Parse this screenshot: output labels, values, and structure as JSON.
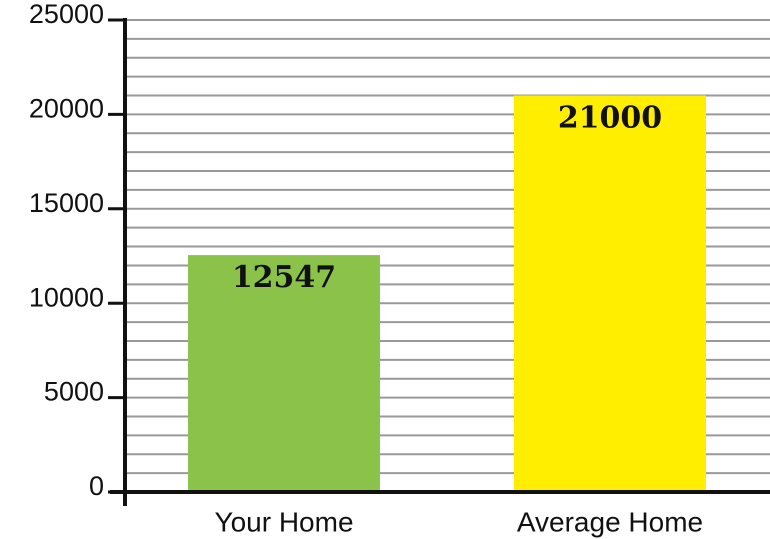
{
  "chart_data": {
    "type": "bar",
    "categories": [
      "Your Home",
      "Average Home"
    ],
    "values": [
      12547,
      21000
    ],
    "colors": [
      "#8bc34a",
      "#ffee00"
    ],
    "ylim": [
      0,
      25000
    ],
    "yticks": [
      0,
      5000,
      10000,
      15000,
      20000,
      25000
    ],
    "minor_yticks": [
      1000,
      2000,
      3000,
      4000,
      6000,
      7000,
      8000,
      9000,
      11000,
      12000,
      13000,
      14000,
      16000,
      17000,
      18000,
      19000,
      21000,
      22000,
      23000,
      24000
    ],
    "grid": true
  }
}
